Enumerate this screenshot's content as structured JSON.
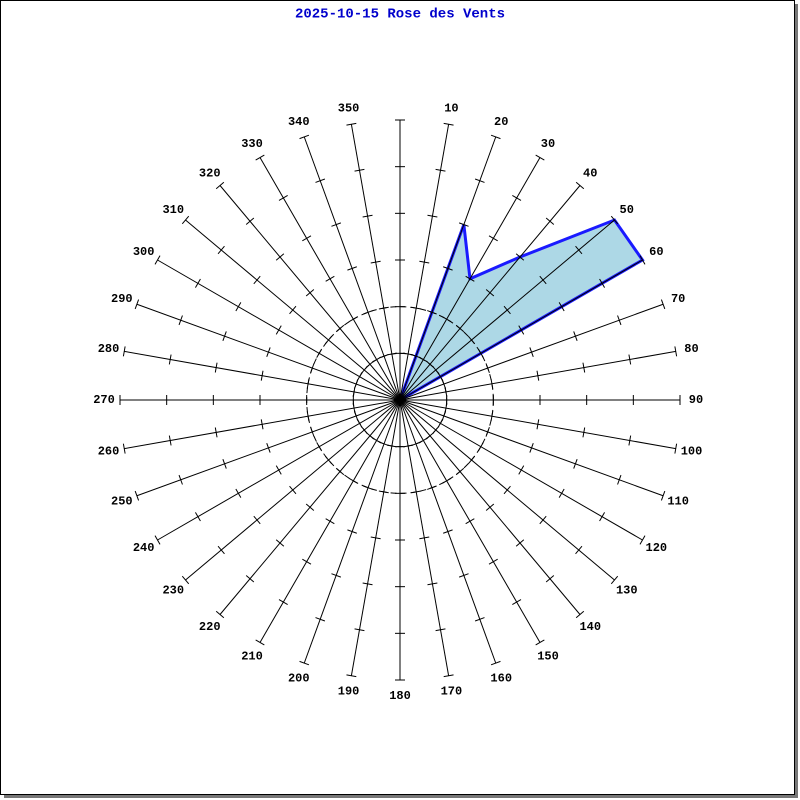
{
  "chart_data": {
    "type": "radar",
    "title": "2025-10-15 Rose des Vents",
    "categories": [
      null,
      "10",
      "20",
      "30",
      "40",
      "50",
      "60",
      "70",
      "80",
      "90",
      "100",
      "110",
      "120",
      "130",
      "140",
      "150",
      "160",
      "170",
      "180",
      "190",
      "200",
      "210",
      "220",
      "230",
      "240",
      "250",
      "260",
      "270",
      "280",
      "290",
      "300",
      "310",
      "320",
      "330",
      "340",
      "350"
    ],
    "values": [
      0,
      0,
      4,
      3,
      4,
      6,
      6,
      0,
      0,
      0,
      0,
      0,
      0,
      0,
      0,
      0,
      0,
      0,
      0,
      0,
      0,
      0,
      0,
      0,
      0,
      0,
      0,
      0,
      0,
      0,
      0,
      0,
      0,
      0,
      0,
      0
    ],
    "color": "#add8e6",
    "line_color": "#1a1aff",
    "rlim": [
      0,
      6
    ],
    "rticks": [
      1,
      2,
      3,
      4,
      5,
      6
    ],
    "rings": [
      1,
      2
    ]
  }
}
